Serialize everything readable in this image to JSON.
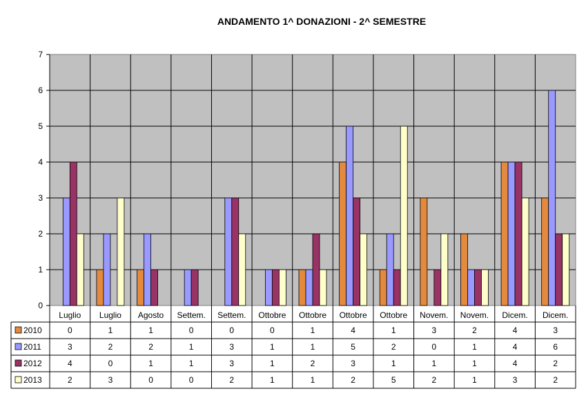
{
  "chart_data": {
    "type": "bar",
    "title": "ANDAMENTO 1^ DONAZIONI  -  2^ SEMESTRE",
    "categories": [
      "Luglio",
      "Luglio",
      "Agosto",
      "Settem.",
      "Settem.",
      "Ottobre",
      "Ottobre",
      "Ottobre",
      "Ottobre",
      "Novem.",
      "Novem.",
      "Dicem.",
      "Dicem."
    ],
    "ylim": [
      0,
      7
    ],
    "yticks": [
      "0",
      "1",
      "2",
      "3",
      "4",
      "5",
      "6",
      "7"
    ],
    "grid": true,
    "legend": "data-table",
    "series": [
      {
        "name": "2010",
        "color": "#e38a3e",
        "values": [
          0,
          1,
          1,
          0,
          0,
          0,
          1,
          4,
          1,
          3,
          2,
          4,
          3
        ]
      },
      {
        "name": "2011",
        "color": "#9999ff",
        "values": [
          3,
          2,
          2,
          1,
          3,
          1,
          1,
          5,
          2,
          0,
          1,
          4,
          6
        ]
      },
      {
        "name": "2012",
        "color": "#993366",
        "values": [
          4,
          0,
          1,
          1,
          3,
          1,
          2,
          3,
          1,
          1,
          1,
          4,
          2
        ]
      },
      {
        "name": "2013",
        "color": "#ffffcc",
        "values": [
          2,
          3,
          0,
          0,
          2,
          1,
          1,
          2,
          5,
          2,
          1,
          3,
          2
        ]
      }
    ]
  }
}
